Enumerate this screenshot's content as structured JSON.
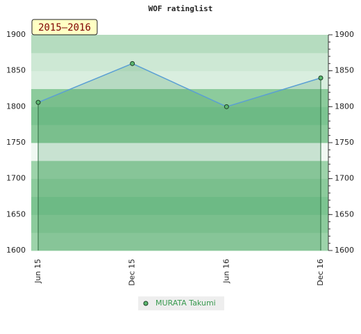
{
  "chart_data": {
    "type": "line",
    "title": "WOF ratinglist",
    "annotation": "2015–2016",
    "categories": [
      "Jun 15",
      "Dec 15",
      "Jun 16",
      "Dec 16"
    ],
    "series": [
      {
        "name": "MURATA Takumi",
        "color": "#5a9fd4",
        "values": [
          1806,
          1860,
          1800,
          1840
        ]
      }
    ],
    "ylim": [
      1600,
      1900
    ],
    "yticks": [
      1600,
      1650,
      1700,
      1750,
      1800,
      1850,
      1900
    ],
    "legend": "bottom"
  }
}
